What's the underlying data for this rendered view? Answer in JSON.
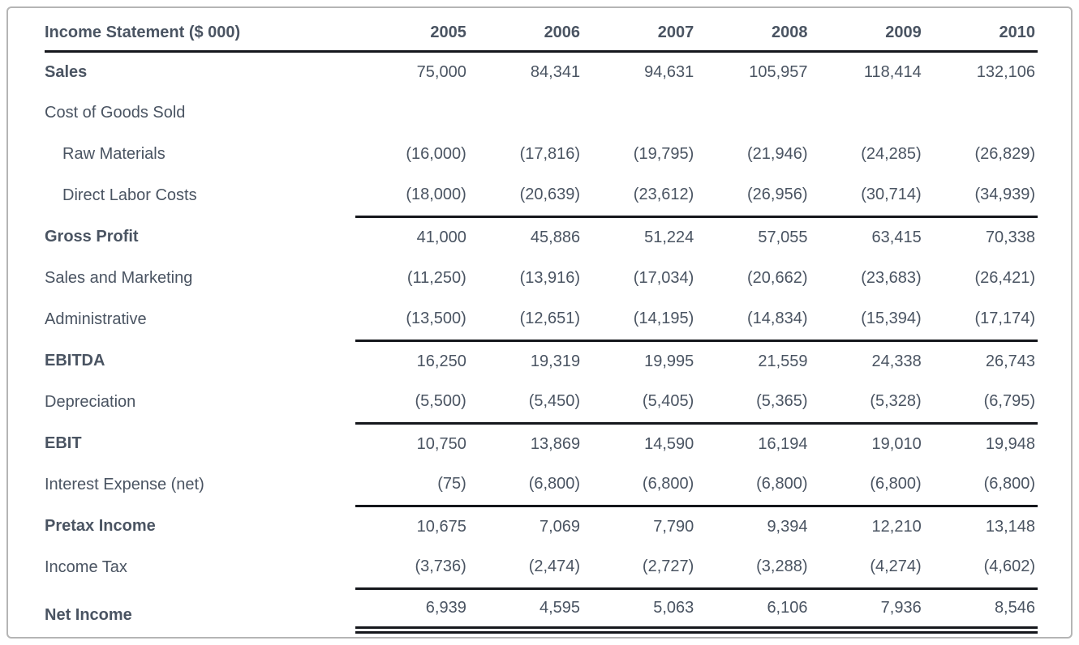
{
  "page": {
    "background_color": "#ffffff",
    "frame_border_color": "#b5b5b5",
    "text_color": "#4a5462",
    "rule_color": "#15171c"
  },
  "table": {
    "title": "Income Statement ($ 000)",
    "years": [
      "2005",
      "2006",
      "2007",
      "2008",
      "2009",
      "2010"
    ],
    "rows": [
      {
        "label": "Sales",
        "bold": true,
        "indent": false,
        "rule_below": false,
        "double_rule_below": false,
        "values": [
          "75,000",
          "84,341",
          "94,631",
          "105,957",
          "118,414",
          "132,106"
        ]
      },
      {
        "label": "Cost of Goods Sold",
        "bold": false,
        "indent": false,
        "rule_below": false,
        "double_rule_below": false,
        "values": [
          "",
          "",
          "",
          "",
          "",
          ""
        ]
      },
      {
        "label": "Raw Materials",
        "bold": false,
        "indent": true,
        "rule_below": false,
        "double_rule_below": false,
        "values": [
          "(16,000)",
          "(17,816)",
          "(19,795)",
          "(21,946)",
          "(24,285)",
          "(26,829)"
        ]
      },
      {
        "label": "Direct Labor Costs",
        "bold": false,
        "indent": true,
        "rule_below": true,
        "double_rule_below": false,
        "values": [
          "(18,000)",
          "(20,639)",
          "(23,612)",
          "(26,956)",
          "(30,714)",
          "(34,939)"
        ]
      },
      {
        "label": "Gross Profit",
        "bold": true,
        "indent": false,
        "rule_below": false,
        "double_rule_below": false,
        "values": [
          "41,000",
          "45,886",
          "51,224",
          "57,055",
          "63,415",
          "70,338"
        ]
      },
      {
        "label": "Sales and Marketing",
        "bold": false,
        "indent": false,
        "rule_below": false,
        "double_rule_below": false,
        "values": [
          "(11,250)",
          "(13,916)",
          "(17,034)",
          "(20,662)",
          "(23,683)",
          "(26,421)"
        ]
      },
      {
        "label": "Administrative",
        "bold": false,
        "indent": false,
        "rule_below": true,
        "double_rule_below": false,
        "values": [
          "(13,500)",
          "(12,651)",
          "(14,195)",
          "(14,834)",
          "(15,394)",
          "(17,174)"
        ]
      },
      {
        "label": "EBITDA",
        "bold": true,
        "indent": false,
        "rule_below": false,
        "double_rule_below": false,
        "values": [
          "16,250",
          "19,319",
          "19,995",
          "21,559",
          "24,338",
          "26,743"
        ]
      },
      {
        "label": "Depreciation",
        "bold": false,
        "indent": false,
        "rule_below": true,
        "double_rule_below": false,
        "values": [
          "(5,500)",
          "(5,450)",
          "(5,405)",
          "(5,365)",
          "(5,328)",
          "(6,795)"
        ]
      },
      {
        "label": "EBIT",
        "bold": true,
        "indent": false,
        "rule_below": false,
        "double_rule_below": false,
        "values": [
          "10,750",
          "13,869",
          "14,590",
          "16,194",
          "19,010",
          "19,948"
        ]
      },
      {
        "label": "Interest Expense (net)",
        "bold": false,
        "indent": false,
        "rule_below": true,
        "double_rule_below": false,
        "values": [
          "(75)",
          "(6,800)",
          "(6,800)",
          "(6,800)",
          "(6,800)",
          "(6,800)"
        ]
      },
      {
        "label": "Pretax Income",
        "bold": true,
        "indent": false,
        "rule_below": false,
        "double_rule_below": false,
        "values": [
          "10,675",
          "7,069",
          "7,790",
          "9,394",
          "12,210",
          "13,148"
        ]
      },
      {
        "label": "Income Tax",
        "bold": false,
        "indent": false,
        "rule_below": true,
        "double_rule_below": false,
        "values": [
          "(3,736)",
          "(2,474)",
          "(2,727)",
          "(3,288)",
          "(4,274)",
          "(4,602)"
        ]
      },
      {
        "label": "Net Income",
        "bold": true,
        "indent": false,
        "rule_below": false,
        "double_rule_below": true,
        "label_drop": true,
        "values": [
          "6,939",
          "4,595",
          "5,063",
          "6,106",
          "7,936",
          "8,546"
        ]
      }
    ]
  }
}
